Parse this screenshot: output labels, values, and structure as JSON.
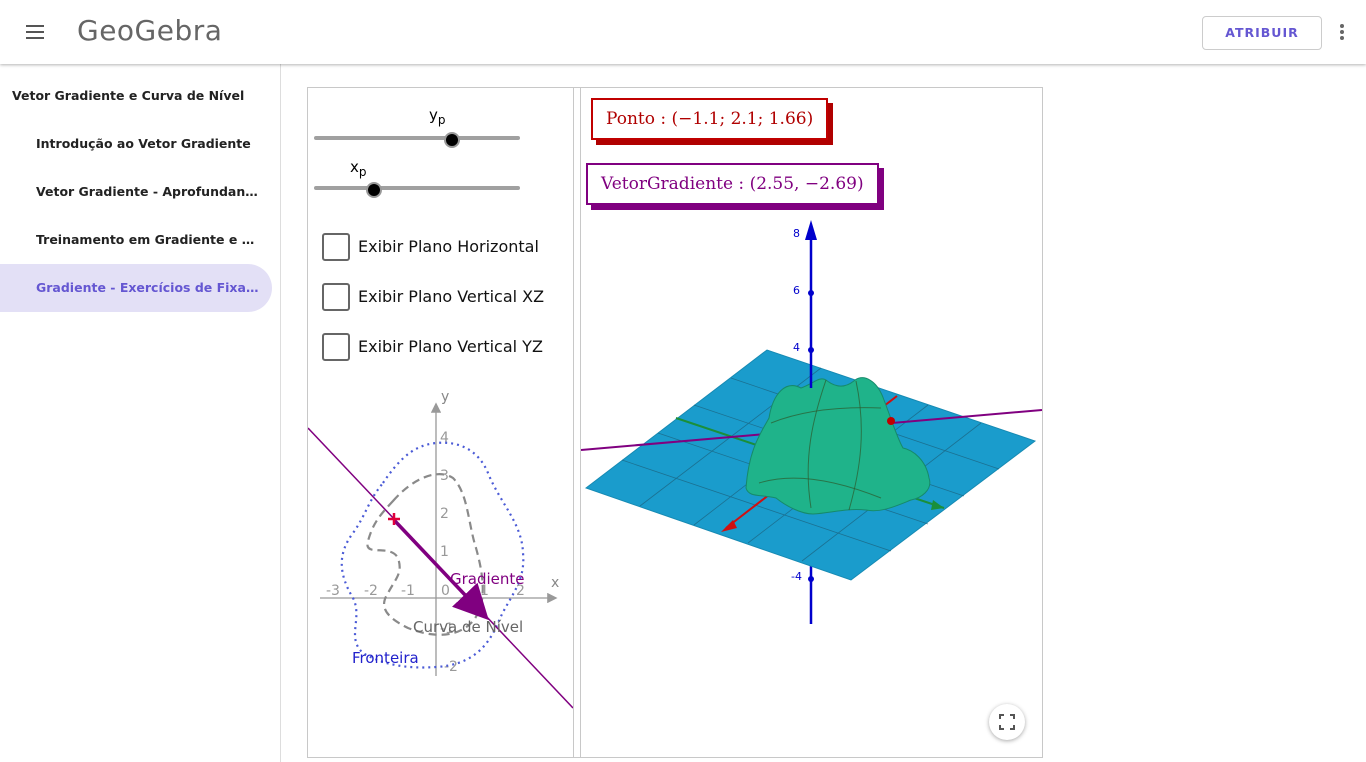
{
  "header": {
    "logo_text": "GeoGebra",
    "assign_label": "ATRIBUIR",
    "menu_icon": "hamburger-menu-icon",
    "more_icon": "more-vert-icon"
  },
  "sidebar": {
    "title": "Vetor Gradiente e Curva de Nível",
    "items": [
      {
        "label": "Introdução ao Vetor Gradiente",
        "active": false
      },
      {
        "label": "Vetor Gradiente - Aprofundando ...",
        "active": false
      },
      {
        "label": "Treinamento em Gradiente e Curv...",
        "active": false
      },
      {
        "label": "Gradiente - Exercícios de Fixação",
        "active": true
      }
    ]
  },
  "applet": {
    "sliders": [
      {
        "name": "y",
        "subscript": "p",
        "value_fraction": 0.67
      },
      {
        "name": "x",
        "subscript": "p",
        "value_fraction": 0.29
      }
    ],
    "checkboxes": [
      {
        "label": "Exibir Plano Horizontal",
        "checked": false
      },
      {
        "label": "Exibir Plano Vertical XZ",
        "checked": false
      },
      {
        "label": "Exibir Plano Vertical YZ",
        "checked": false
      }
    ],
    "graph2d": {
      "axis_x_label": "x",
      "axis_y_label": "y",
      "x_ticks": [
        "-3",
        "-2",
        "-1",
        "0",
        "1",
        "2"
      ],
      "y_ticks": [
        "4",
        "3",
        "2",
        "1",
        "-1",
        "-2"
      ],
      "label_gradient": "Gradiente",
      "label_level_curve": "Curva de Nível",
      "label_boundary": "Fronteira",
      "colors": {
        "gradient": "#800080",
        "boundary": "#4b5bd6",
        "level_curve": "#8a8a8a",
        "point": "#e0003a"
      }
    },
    "graph3d": {
      "point_label": "Ponto : (−1.1;  2.1;  1.66)",
      "gradient_label": "VetorGradiente :  (2.55, −2.69)",
      "z_ticks": [
        "8",
        "6",
        "4",
        "-4"
      ],
      "colors": {
        "plane": "#1a9ccc",
        "surface": "#1fb38a",
        "z_axis": "#0000cc",
        "point": "#c00000",
        "gradient_line": "#800080"
      }
    },
    "fullscreen_icon": "fullscreen-icon"
  }
}
